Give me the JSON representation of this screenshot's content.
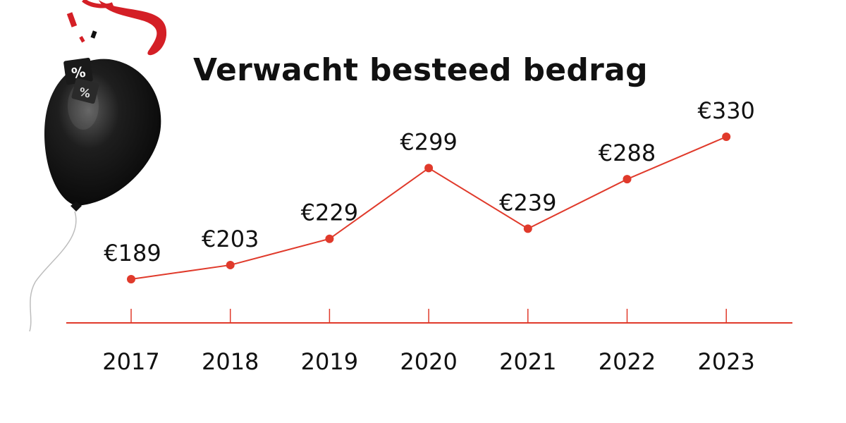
{
  "colors": {
    "accent": "#e03a2b",
    "text": "#111111",
    "balloon": "#111111",
    "ribbon": "#d41f26"
  },
  "decoration": {
    "balloon_icon": "black-balloon-icon",
    "gift_tag_symbol": "%",
    "ribbon_icon": "red-ribbon-icon"
  },
  "chart_data": {
    "type": "line",
    "title": "Verwacht besteed bedrag",
    "categories": [
      "2017",
      "2018",
      "2019",
      "2020",
      "2021",
      "2022",
      "2023"
    ],
    "values": [
      189,
      203,
      229,
      299,
      239,
      288,
      330
    ],
    "value_labels": [
      "€189",
      "€203",
      "€229",
      "€299",
      "€239",
      "€288",
      "€330"
    ],
    "xlabel": "",
    "ylabel": "",
    "grid": false,
    "legend": "none"
  }
}
